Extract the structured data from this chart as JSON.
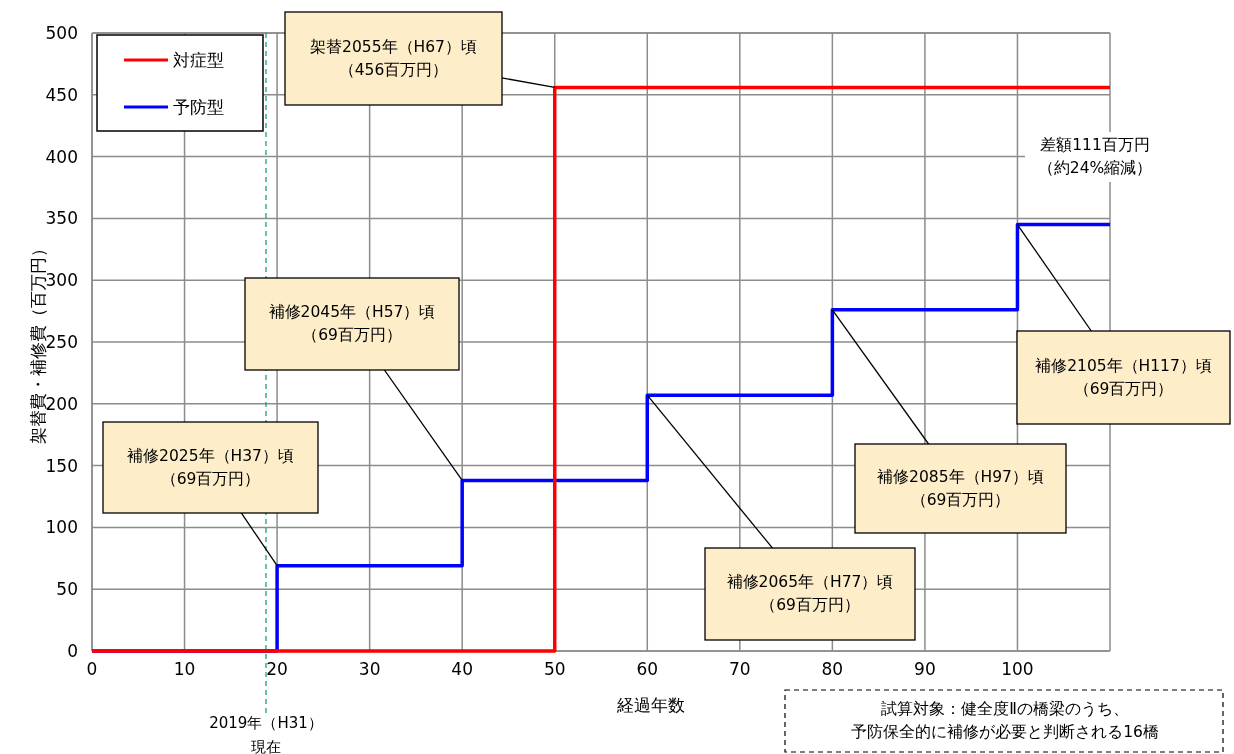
{
  "chart_data": {
    "type": "step",
    "xlabel": "経過年数",
    "ylabel": "架替費・補修費（百万円）",
    "xlim": [
      0,
      110
    ],
    "xticks": [
      0,
      10,
      20,
      30,
      40,
      50,
      60,
      70,
      80,
      90,
      100
    ],
    "ylim": [
      0,
      500
    ],
    "yticks": [
      0,
      50,
      100,
      150,
      200,
      250,
      300,
      350,
      400,
      450,
      500
    ],
    "grid": true,
    "legend": "top left",
    "series": [
      {
        "name": "対症型",
        "color": "#ff0000",
        "x": [
          0,
          50,
          110
        ],
        "values": [
          0,
          456,
          456
        ]
      },
      {
        "name": "予防型",
        "color": "#0000ff",
        "x": [
          0,
          20,
          40,
          60,
          80,
          100,
          110
        ],
        "values": [
          0,
          69,
          138,
          207,
          276,
          345,
          345
        ]
      }
    ],
    "ref_lines": [
      {
        "axis": "x",
        "value": 18.8,
        "label": "2019年（H31）現在",
        "color": "#00a050",
        "line_style": "dashed"
      }
    ],
    "annotations": [
      {
        "text": "架替2055年（H67）頃（456百万円）",
        "x": 50,
        "y": 456
      },
      {
        "text": "補修2045年（H57）頃（69百万円）",
        "x": 40,
        "y": 138
      },
      {
        "text": "補修2025年（H37）頃（69百万円）",
        "x": 20,
        "y": 69
      },
      {
        "text": "補修2065年（H77）頃（69百万円）",
        "x": 60,
        "y": 207
      },
      {
        "text": "補修2085年（H97）頃（69百万円）",
        "x": 80,
        "y": 276
      },
      {
        "text": "補修2105年（H117）頃（69百万円）",
        "x": 100,
        "y": 345
      },
      "差額111百万円（約24%縮減）",
      "試算対象：健全度Ⅱの橋梁のうち、予防保全的に補修が必要と判断される16橋"
    ]
  }
}
